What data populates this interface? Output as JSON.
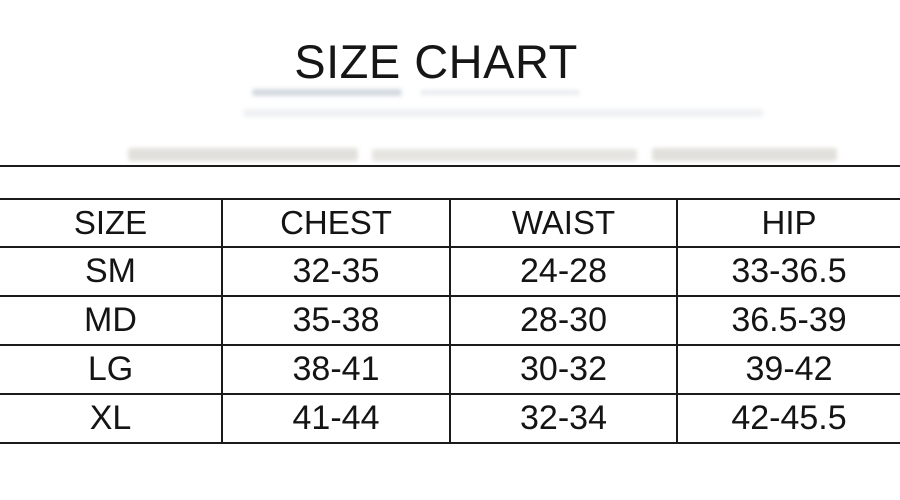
{
  "page": {
    "background": "#ffffff"
  },
  "header": {
    "title": "SIZE CHART"
  },
  "chart_data": {
    "type": "table",
    "title": "SIZE CHART",
    "columns": [
      "SIZE",
      "CHEST",
      "WAIST",
      "HIP"
    ],
    "rows": [
      [
        "SM",
        "32-35",
        "24-28",
        "33-36.5"
      ],
      [
        "MD",
        "35-38",
        "28-30",
        "36.5-39"
      ],
      [
        "LG",
        "38-41",
        "30-32",
        "39-42"
      ],
      [
        "XL",
        "41-44",
        "32-34",
        "42-45.5"
      ]
    ]
  },
  "colors": {
    "text": "#151515",
    "line": "#1b1b1b",
    "background": "#ffffff"
  }
}
